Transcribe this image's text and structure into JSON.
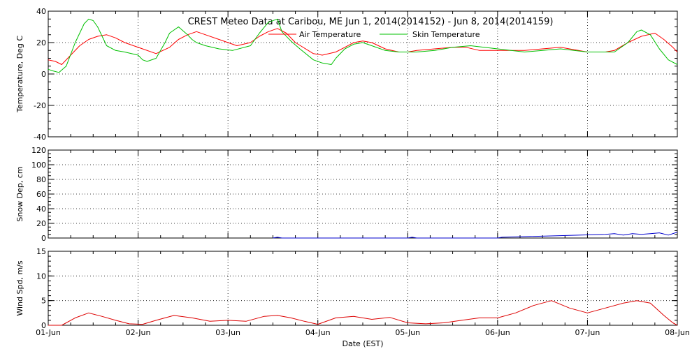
{
  "title": "CREST Meteo Data at Caribou, ME   Jun  1, 2014(2014152) - Jun  8, 2014(2014159)",
  "xlabel": "Date (EST)",
  "x_ticks": [
    "01-Jun",
    "02-Jun",
    "03-Jun",
    "04-Jun",
    "05-Jun",
    "06-Jun",
    "07-Jun",
    "08-Jun"
  ],
  "colors": {
    "air": "#ff0000",
    "skin": "#00c000",
    "snow": "#0000cc",
    "wind": "#dd0000"
  },
  "chart_data": [
    {
      "type": "line",
      "ylabel": "Temperature, Deg C",
      "ylim": [
        -40,
        40
      ],
      "y_ticks": [
        "-40",
        "-20",
        "0",
        "20",
        "40"
      ],
      "x_unit": "days since 01-Jun",
      "xlim": [
        0,
        7
      ],
      "grid": true,
      "legend_position": "top-right",
      "series": [
        {
          "name": "Air Temperature",
          "color": "#ff0000",
          "x": [
            0,
            0.08,
            0.15,
            0.25,
            0.35,
            0.45,
            0.55,
            0.65,
            0.75,
            0.85,
            0.95,
            1.05,
            1.2,
            1.35,
            1.45,
            1.55,
            1.65,
            1.75,
            1.9,
            2.1,
            2.25,
            2.35,
            2.45,
            2.55,
            2.65,
            2.75,
            2.95,
            3.05,
            3.2,
            3.3,
            3.4,
            3.5,
            3.6,
            3.75,
            3.9,
            4.0,
            4.1,
            4.3,
            4.5,
            4.65,
            4.8,
            5.0,
            5.3,
            5.5,
            5.7,
            6.0,
            6.2,
            6.3,
            6.45,
            6.6,
            6.75,
            6.85,
            6.95,
            7.0
          ],
          "y": [
            9,
            8,
            6,
            12,
            18,
            22,
            24,
            25,
            23,
            20,
            18,
            16,
            13,
            17,
            22,
            25,
            27,
            25,
            22,
            18,
            20,
            24,
            27,
            29,
            26,
            20,
            13,
            12,
            14,
            17,
            20,
            21,
            20,
            16,
            14,
            14,
            15,
            16,
            17,
            17,
            15,
            15,
            15,
            16,
            17,
            14,
            14,
            15,
            20,
            24,
            26,
            22,
            17,
            14
          ]
        },
        {
          "name": "Skin Temperature",
          "color": "#00c000",
          "x": [
            0,
            0.05,
            0.12,
            0.2,
            0.3,
            0.4,
            0.45,
            0.5,
            0.55,
            0.6,
            0.65,
            0.75,
            0.85,
            1.0,
            1.05,
            1.1,
            1.2,
            1.3,
            1.35,
            1.45,
            1.55,
            1.6,
            1.65,
            1.75,
            1.9,
            2.05,
            2.25,
            2.35,
            2.45,
            2.55,
            2.6,
            2.7,
            2.8,
            2.95,
            3.05,
            3.15,
            3.2,
            3.3,
            3.4,
            3.5,
            3.6,
            3.75,
            3.9,
            4.1,
            4.3,
            4.5,
            4.7,
            5.0,
            5.3,
            5.5,
            5.7,
            6.0,
            6.2,
            6.3,
            6.45,
            6.55,
            6.6,
            6.7,
            6.8,
            6.9,
            7.0
          ],
          "y": [
            3,
            2,
            1,
            5,
            20,
            32,
            35,
            34,
            30,
            24,
            18,
            15,
            14,
            12,
            9,
            8,
            10,
            20,
            26,
            30,
            25,
            22,
            20,
            18,
            16,
            15,
            18,
            26,
            33,
            35,
            27,
            21,
            16,
            9,
            7,
            6,
            10,
            16,
            19,
            20,
            18,
            15,
            14,
            14,
            15,
            17,
            18,
            16,
            14,
            15,
            16,
            14,
            14,
            14,
            20,
            27,
            28,
            25,
            16,
            9,
            6
          ]
        }
      ]
    },
    {
      "type": "line",
      "ylabel": "Snow Dep, cm",
      "ylim": [
        0,
        120
      ],
      "y_ticks": [
        "0",
        "20",
        "40",
        "60",
        "80",
        "100",
        "120"
      ],
      "x_unit": "days since 01-Jun",
      "xlim": [
        0,
        7
      ],
      "grid": true,
      "series": [
        {
          "name": "Snow Depth",
          "color": "#0000cc",
          "x": [
            2.5,
            2.55,
            2.6,
            4.0,
            4.05,
            4.1,
            5.0,
            5.05,
            6.2,
            6.3,
            6.4,
            6.5,
            6.6,
            6.7,
            6.8,
            6.9,
            7.0
          ],
          "y": [
            0,
            1,
            0,
            0,
            1,
            0,
            0,
            1,
            5,
            6,
            4,
            6,
            5,
            6,
            7,
            4,
            8
          ]
        }
      ]
    },
    {
      "type": "line",
      "ylabel": "Wind Spd, m/s",
      "ylim": [
        0,
        15
      ],
      "y_ticks": [
        "0",
        "5",
        "10",
        "15"
      ],
      "x_unit": "days since 01-Jun",
      "xlim": [
        0,
        7
      ],
      "grid": true,
      "series": [
        {
          "name": "Wind Speed",
          "color": "#dd0000",
          "x": [
            0,
            0.15,
            0.3,
            0.45,
            0.6,
            0.75,
            0.9,
            1.05,
            1.2,
            1.4,
            1.6,
            1.8,
            2.0,
            2.2,
            2.4,
            2.55,
            2.7,
            2.85,
            3.0,
            3.2,
            3.4,
            3.6,
            3.8,
            4.0,
            4.2,
            4.4,
            4.6,
            4.8,
            5.0,
            5.2,
            5.4,
            5.6,
            5.8,
            6.0,
            6.2,
            6.4,
            6.55,
            6.7,
            6.85,
            6.95,
            7.0
          ],
          "y": [
            0,
            0,
            1.5,
            2.5,
            1.8,
            1.0,
            0.3,
            0.2,
            1.0,
            2.0,
            1.5,
            0.8,
            1.0,
            0.8,
            1.8,
            2.0,
            1.5,
            0.8,
            0.2,
            1.5,
            1.8,
            1.2,
            1.6,
            0.5,
            0.3,
            0.5,
            1.0,
            1.5,
            1.5,
            2.5,
            4.0,
            5.0,
            3.5,
            2.5,
            3.5,
            4.5,
            5.0,
            4.5,
            2.0,
            0.5,
            0
          ]
        }
      ]
    }
  ]
}
